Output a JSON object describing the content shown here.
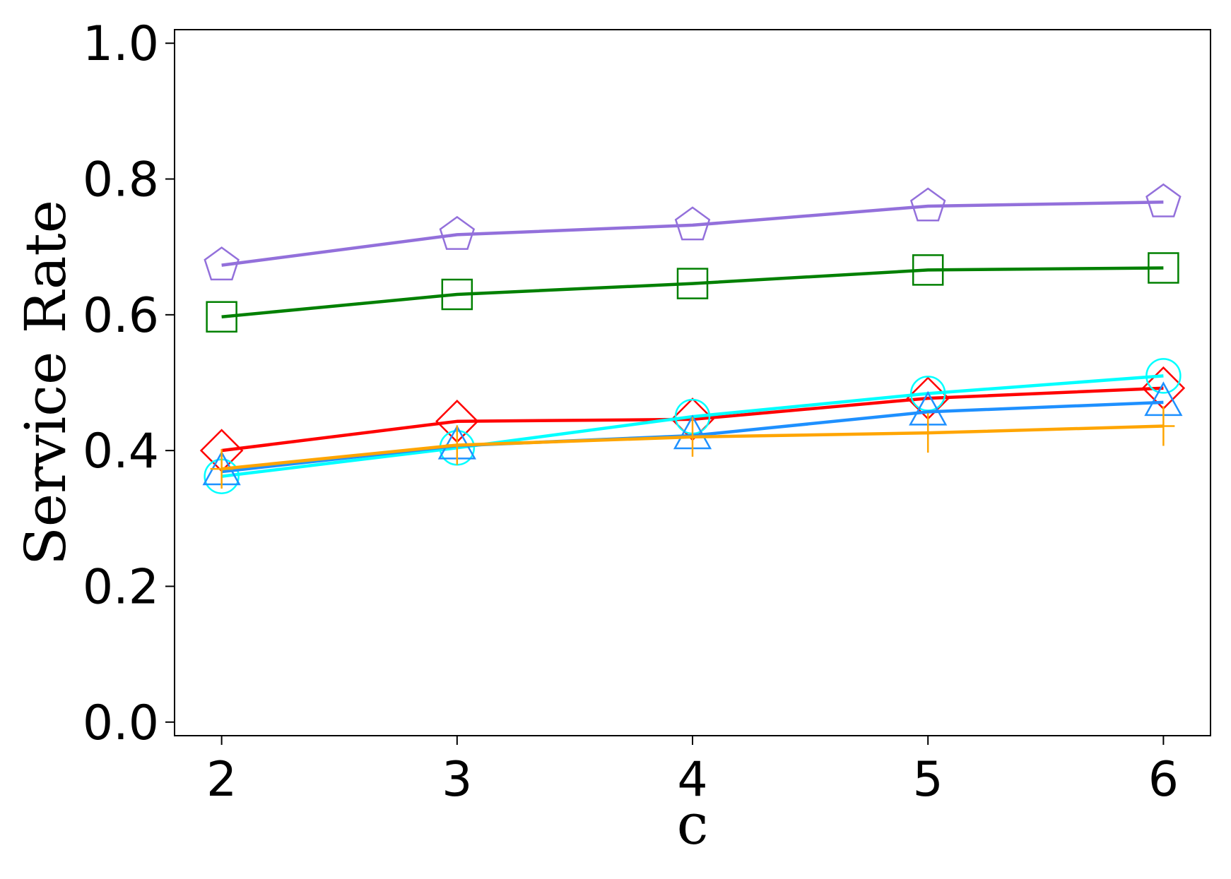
{
  "chart_data": {
    "type": "line",
    "xlabel": "c",
    "ylabel": "Service Rate",
    "x": [
      2,
      3,
      4,
      5,
      6
    ],
    "xlim": [
      1.8,
      6.2
    ],
    "ylim": [
      -0.02,
      1.02
    ],
    "xticks": [
      "2",
      "3",
      "4",
      "5",
      "6"
    ],
    "yticks": [
      "0.0",
      "0.2",
      "0.4",
      "0.6",
      "0.8",
      "1.0"
    ],
    "grid": false,
    "legend": "none",
    "series": [
      {
        "color": "#9370DB",
        "marker": "pentagon",
        "values": [
          0.673,
          0.718,
          0.732,
          0.76,
          0.766
        ]
      },
      {
        "color": "#008000",
        "marker": "square",
        "values": [
          0.597,
          0.63,
          0.646,
          0.666,
          0.669
        ]
      },
      {
        "color": "#FF0000",
        "marker": "diamond",
        "values": [
          0.4,
          0.443,
          0.446,
          0.477,
          0.492
        ]
      },
      {
        "color": "#00FFFF",
        "marker": "circle",
        "values": [
          0.362,
          0.404,
          0.45,
          0.484,
          0.51
        ]
      },
      {
        "color": "#1E90FF",
        "marker": "triangle",
        "values": [
          0.369,
          0.407,
          0.422,
          0.457,
          0.471
        ]
      },
      {
        "color": "#FFA500",
        "marker": "plus",
        "values": [
          0.373,
          0.408,
          0.42,
          0.426,
          0.436
        ]
      }
    ]
  }
}
